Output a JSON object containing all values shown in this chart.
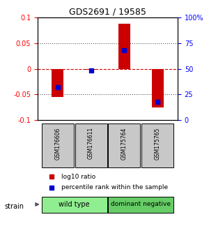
{
  "title": "GDS2691 / 19585",
  "samples": [
    "GSM176606",
    "GSM176611",
    "GSM175764",
    "GSM175765"
  ],
  "log10_ratio": [
    -0.055,
    -0.002,
    0.088,
    -0.075
  ],
  "percentile_rank": [
    32,
    48,
    68,
    18
  ],
  "groups": [
    {
      "name": "wild type",
      "samples": [
        0,
        1
      ],
      "color": "#90ee90"
    },
    {
      "name": "dominant negative",
      "samples": [
        2,
        3
      ],
      "color": "#66cc66"
    }
  ],
  "ylim": [
    -0.1,
    0.1
  ],
  "yticks_left": [
    -0.1,
    -0.05,
    0,
    0.05,
    0.1
  ],
  "yticks_right_labels": [
    "0",
    "25",
    "50",
    "75",
    "100%"
  ],
  "bar_width": 0.35,
  "red_bar_color": "#cc0000",
  "blue_bar_color": "#0000cc",
  "hline_color": "#cc0000",
  "dotted_color": "#555555",
  "strain_label": "strain",
  "legend_red": "log10 ratio",
  "legend_blue": "percentile rank within the sample"
}
